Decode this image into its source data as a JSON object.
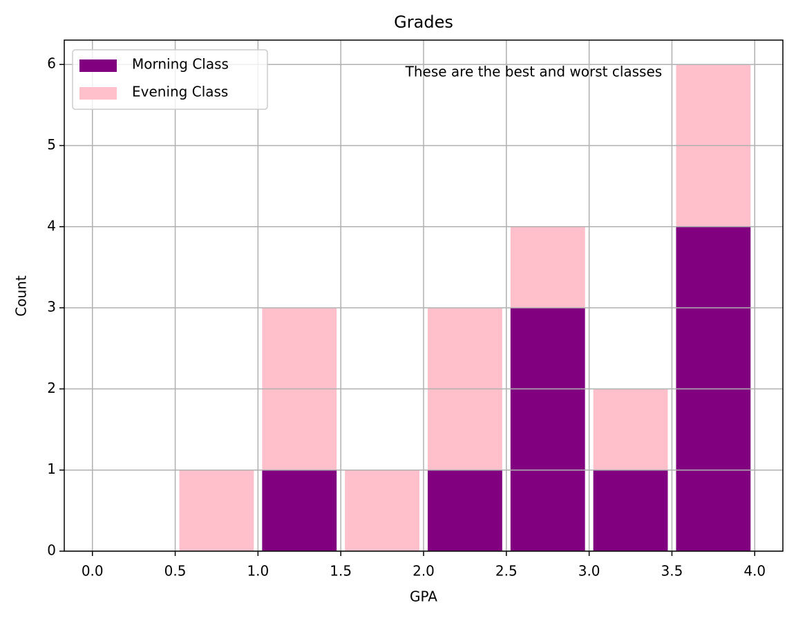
{
  "chart_data": {
    "type": "histogram",
    "title": "Grades",
    "xlabel": "GPA",
    "ylabel": "Count",
    "annotation": "These are the best and worst classes",
    "bins": [
      0,
      0.5,
      1.0,
      1.5,
      2.0,
      2.5,
      3.0,
      3.5,
      4.0
    ],
    "stacked": true,
    "series": [
      {
        "name": "Morning Class",
        "color": "#800080",
        "values": [
          0,
          0,
          1,
          0,
          1,
          3,
          1,
          4
        ]
      },
      {
        "name": "Evening Class",
        "color": "#ffc0cb",
        "values": [
          0,
          1,
          2,
          1,
          2,
          1,
          1,
          2
        ]
      }
    ],
    "xlim": [
      -0.17,
      4.17
    ],
    "xticks": [
      {
        "value": 0,
        "label": "0.0"
      },
      {
        "value": 0.5,
        "label": "0.5"
      },
      {
        "value": 1,
        "label": "1.0"
      },
      {
        "value": 1.5,
        "label": "1.5"
      },
      {
        "value": 2,
        "label": "2.0"
      },
      {
        "value": 2.5,
        "label": "2.5"
      },
      {
        "value": 3,
        "label": "3.0"
      },
      {
        "value": 3.5,
        "label": "3.5"
      },
      {
        "value": 4,
        "label": "4.0"
      }
    ],
    "ylim": [
      0,
      6.3
    ],
    "yticks": [
      0,
      1,
      2,
      3,
      4,
      5,
      6
    ],
    "grid": true,
    "legend": "upper left"
  }
}
